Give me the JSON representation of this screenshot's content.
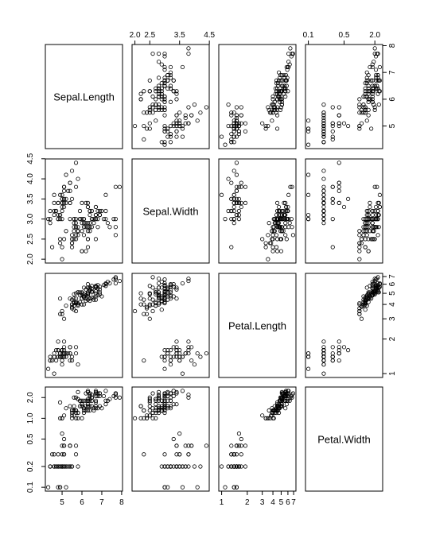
{
  "chart_data": {
    "type": "scatter",
    "kind": "pairs-matrix",
    "variables": [
      {
        "name": "Sepal.Length",
        "scale": "linear",
        "range": [
          4.3,
          7.9
        ],
        "ticks": [
          5,
          6,
          7,
          8
        ],
        "tick_labels": [
          "5",
          "6",
          "7",
          "8"
        ]
      },
      {
        "name": "Sepal.Width",
        "scale": "linear",
        "range": [
          2.0,
          4.4
        ],
        "ticks": [
          2.0,
          2.5,
          3.0,
          3.5,
          4.0,
          4.5
        ],
        "tick_labels": [
          "2.0",
          "2.5",
          "3.0",
          "3.5",
          "4.0",
          "4.5"
        ]
      },
      {
        "name": "Petal.Length",
        "scale": "log",
        "range": [
          1.0,
          6.9
        ],
        "ticks": [
          1,
          2,
          3,
          4,
          5,
          6,
          7
        ],
        "tick_labels": [
          "1",
          "2",
          "3",
          "4",
          "5",
          "6",
          "7"
        ]
      },
      {
        "name": "Petal.Width",
        "scale": "log",
        "range": [
          0.1,
          2.5
        ],
        "ticks": [
          0.1,
          0.2,
          0.5,
          1.0,
          2.0
        ],
        "tick_labels": [
          "0.1",
          "0.2",
          "0.5",
          "1.0",
          "2.0"
        ]
      }
    ],
    "top_axis_labels": [
      {
        "column": 1,
        "labels": [
          "2.0",
          "2.5",
          "3.5",
          "4.5"
        ],
        "ticks": [
          2.0,
          2.5,
          3.5,
          4.5
        ]
      },
      {
        "column": 3,
        "labels": [
          "0.1",
          "0.5",
          "2.0"
        ],
        "ticks": [
          0.1,
          0.5,
          2.0
        ]
      }
    ],
    "bottom_axis_labels": [
      {
        "column": 0,
        "labels": [
          "5",
          "6",
          "7",
          "8"
        ],
        "ticks": [
          5,
          6,
          7,
          8
        ]
      },
      {
        "column": 2,
        "labels": [
          "1",
          "2",
          "3",
          "4",
          "5",
          "6",
          "7"
        ],
        "ticks": [
          1,
          2,
          3,
          4,
          5,
          6,
          7
        ]
      }
    ],
    "left_axis_labels": [
      {
        "row": 1,
        "labels": [
          "2.0",
          "2.5",
          "3.0",
          "3.5",
          "4.0",
          "4.5"
        ],
        "ticks": [
          2.0,
          2.5,
          3.0,
          3.5,
          4.0,
          4.5
        ]
      },
      {
        "row": 3,
        "labels": [
          "0.1",
          "0.2",
          "0.5",
          "1.0",
          "2.0"
        ],
        "ticks": [
          0.1,
          0.2,
          0.5,
          1.0,
          2.0
        ]
      }
    ],
    "right_axis_labels": [
      {
        "row": 0,
        "labels": [
          "5",
          "6",
          "7",
          "8"
        ],
        "ticks": [
          5,
          6,
          7,
          8
        ]
      },
      {
        "row": 2,
        "labels": [
          "1",
          "2",
          "3",
          "4",
          "5",
          "6",
          "7"
        ],
        "ticks": [
          1,
          2,
          3,
          4,
          5,
          6,
          7
        ]
      }
    ],
    "points": [
      [
        5.1,
        3.5,
        1.4,
        0.2
      ],
      [
        4.9,
        3.0,
        1.4,
        0.2
      ],
      [
        4.7,
        3.2,
        1.3,
        0.2
      ],
      [
        4.6,
        3.1,
        1.5,
        0.2
      ],
      [
        5.0,
        3.6,
        1.4,
        0.2
      ],
      [
        5.4,
        3.9,
        1.7,
        0.4
      ],
      [
        4.6,
        3.4,
        1.4,
        0.3
      ],
      [
        5.0,
        3.4,
        1.5,
        0.2
      ],
      [
        4.4,
        2.9,
        1.4,
        0.2
      ],
      [
        4.9,
        3.1,
        1.5,
        0.1
      ],
      [
        5.4,
        3.7,
        1.5,
        0.2
      ],
      [
        4.8,
        3.4,
        1.6,
        0.2
      ],
      [
        4.8,
        3.0,
        1.4,
        0.1
      ],
      [
        4.3,
        3.0,
        1.1,
        0.1
      ],
      [
        5.8,
        4.0,
        1.2,
        0.2
      ],
      [
        5.7,
        4.4,
        1.5,
        0.4
      ],
      [
        5.4,
        3.9,
        1.3,
        0.4
      ],
      [
        5.1,
        3.5,
        1.4,
        0.3
      ],
      [
        5.7,
        3.8,
        1.7,
        0.3
      ],
      [
        5.1,
        3.8,
        1.5,
        0.3
      ],
      [
        5.4,
        3.4,
        1.7,
        0.2
      ],
      [
        5.1,
        3.7,
        1.5,
        0.4
      ],
      [
        4.6,
        3.6,
        1.0,
        0.2
      ],
      [
        5.1,
        3.3,
        1.7,
        0.5
      ],
      [
        4.8,
        3.4,
        1.9,
        0.2
      ],
      [
        5.0,
        3.0,
        1.6,
        0.2
      ],
      [
        5.0,
        3.4,
        1.6,
        0.4
      ],
      [
        5.2,
        3.5,
        1.5,
        0.2
      ],
      [
        5.2,
        3.4,
        1.4,
        0.2
      ],
      [
        4.7,
        3.2,
        1.6,
        0.2
      ],
      [
        4.8,
        3.1,
        1.6,
        0.2
      ],
      [
        5.4,
        3.4,
        1.5,
        0.4
      ],
      [
        5.2,
        4.1,
        1.5,
        0.1
      ],
      [
        5.5,
        4.2,
        1.4,
        0.2
      ],
      [
        4.9,
        3.1,
        1.5,
        0.2
      ],
      [
        5.0,
        3.2,
        1.2,
        0.2
      ],
      [
        5.5,
        3.5,
        1.3,
        0.2
      ],
      [
        4.9,
        3.6,
        1.4,
        0.1
      ],
      [
        4.4,
        3.0,
        1.3,
        0.2
      ],
      [
        5.1,
        3.4,
        1.5,
        0.2
      ],
      [
        5.0,
        3.5,
        1.3,
        0.3
      ],
      [
        4.5,
        2.3,
        1.3,
        0.3
      ],
      [
        4.4,
        3.2,
        1.3,
        0.2
      ],
      [
        5.0,
        3.5,
        1.6,
        0.6
      ],
      [
        5.1,
        3.8,
        1.9,
        0.4
      ],
      [
        4.8,
        3.0,
        1.4,
        0.3
      ],
      [
        5.1,
        3.8,
        1.6,
        0.2
      ],
      [
        4.6,
        3.2,
        1.4,
        0.2
      ],
      [
        5.3,
        3.7,
        1.5,
        0.2
      ],
      [
        5.0,
        3.3,
        1.4,
        0.2
      ],
      [
        7.0,
        3.2,
        4.7,
        1.4
      ],
      [
        6.4,
        3.2,
        4.5,
        1.5
      ],
      [
        6.9,
        3.1,
        4.9,
        1.5
      ],
      [
        5.5,
        2.3,
        4.0,
        1.3
      ],
      [
        6.5,
        2.8,
        4.6,
        1.5
      ],
      [
        5.7,
        2.8,
        4.5,
        1.3
      ],
      [
        6.3,
        3.3,
        4.7,
        1.6
      ],
      [
        4.9,
        2.4,
        3.3,
        1.0
      ],
      [
        6.6,
        2.9,
        4.6,
        1.3
      ],
      [
        5.2,
        2.7,
        3.9,
        1.4
      ],
      [
        5.0,
        2.0,
        3.5,
        1.0
      ],
      [
        5.9,
        3.0,
        4.2,
        1.5
      ],
      [
        6.0,
        2.2,
        4.0,
        1.0
      ],
      [
        6.1,
        2.9,
        4.7,
        1.4
      ],
      [
        5.6,
        2.9,
        3.6,
        1.3
      ],
      [
        6.7,
        3.1,
        4.4,
        1.4
      ],
      [
        5.6,
        3.0,
        4.5,
        1.5
      ],
      [
        5.8,
        2.7,
        4.1,
        1.0
      ],
      [
        6.2,
        2.2,
        4.5,
        1.5
      ],
      [
        5.6,
        2.5,
        3.9,
        1.1
      ],
      [
        5.9,
        3.2,
        4.8,
        1.8
      ],
      [
        6.1,
        2.8,
        4.0,
        1.3
      ],
      [
        6.3,
        2.5,
        4.9,
        1.5
      ],
      [
        6.1,
        2.8,
        4.7,
        1.2
      ],
      [
        6.4,
        2.9,
        4.3,
        1.3
      ],
      [
        6.6,
        3.0,
        4.4,
        1.4
      ],
      [
        6.8,
        2.8,
        4.8,
        1.4
      ],
      [
        6.7,
        3.0,
        5.0,
        1.7
      ],
      [
        6.0,
        2.9,
        4.5,
        1.5
      ],
      [
        5.7,
        2.6,
        3.5,
        1.0
      ],
      [
        5.5,
        2.4,
        3.8,
        1.1
      ],
      [
        5.5,
        2.4,
        3.7,
        1.0
      ],
      [
        5.8,
        2.7,
        3.9,
        1.2
      ],
      [
        6.0,
        2.7,
        5.1,
        1.6
      ],
      [
        5.4,
        3.0,
        4.5,
        1.5
      ],
      [
        6.0,
        3.4,
        4.5,
        1.6
      ],
      [
        6.7,
        3.1,
        4.7,
        1.5
      ],
      [
        6.3,
        2.3,
        4.4,
        1.3
      ],
      [
        5.6,
        3.0,
        4.1,
        1.3
      ],
      [
        5.5,
        2.5,
        4.0,
        1.3
      ],
      [
        5.5,
        2.6,
        4.4,
        1.2
      ],
      [
        6.1,
        3.0,
        4.6,
        1.4
      ],
      [
        5.8,
        2.6,
        4.0,
        1.2
      ],
      [
        5.0,
        2.3,
        3.3,
        1.0
      ],
      [
        5.6,
        2.7,
        4.2,
        1.3
      ],
      [
        5.7,
        3.0,
        4.2,
        1.2
      ],
      [
        5.7,
        2.9,
        4.2,
        1.3
      ],
      [
        6.2,
        2.9,
        4.3,
        1.3
      ],
      [
        5.1,
        2.5,
        3.0,
        1.1
      ],
      [
        5.7,
        2.8,
        4.1,
        1.3
      ],
      [
        6.3,
        3.3,
        6.0,
        2.5
      ],
      [
        5.8,
        2.7,
        5.1,
        1.9
      ],
      [
        7.1,
        3.0,
        5.9,
        2.1
      ],
      [
        6.3,
        2.9,
        5.6,
        1.8
      ],
      [
        6.5,
        3.0,
        5.8,
        2.2
      ],
      [
        7.6,
        3.0,
        6.6,
        2.1
      ],
      [
        4.9,
        2.5,
        4.5,
        1.7
      ],
      [
        7.3,
        2.9,
        6.3,
        1.8
      ],
      [
        6.7,
        2.5,
        5.8,
        1.8
      ],
      [
        7.2,
        3.6,
        6.1,
        2.5
      ],
      [
        6.5,
        3.2,
        5.1,
        2.0
      ],
      [
        6.4,
        2.7,
        5.3,
        1.9
      ],
      [
        6.8,
        3.0,
        5.5,
        2.1
      ],
      [
        5.7,
        2.5,
        5.0,
        2.0
      ],
      [
        5.8,
        2.8,
        5.1,
        2.4
      ],
      [
        6.4,
        3.2,
        5.3,
        2.3
      ],
      [
        6.5,
        3.0,
        5.5,
        1.8
      ],
      [
        7.7,
        3.8,
        6.7,
        2.2
      ],
      [
        7.7,
        2.6,
        6.9,
        2.3
      ],
      [
        6.0,
        2.2,
        5.0,
        1.5
      ],
      [
        6.9,
        3.2,
        5.7,
        2.3
      ],
      [
        5.6,
        2.8,
        4.9,
        2.0
      ],
      [
        7.7,
        2.8,
        6.7,
        2.0
      ],
      [
        6.3,
        2.7,
        4.9,
        1.8
      ],
      [
        6.7,
        3.3,
        5.7,
        2.1
      ],
      [
        7.2,
        3.2,
        6.0,
        1.8
      ],
      [
        6.2,
        2.8,
        4.8,
        1.8
      ],
      [
        6.1,
        3.0,
        4.9,
        1.8
      ],
      [
        6.4,
        2.8,
        5.6,
        2.1
      ],
      [
        7.2,
        3.0,
        5.8,
        1.6
      ],
      [
        7.4,
        2.8,
        6.1,
        1.9
      ],
      [
        7.9,
        3.8,
        6.4,
        2.0
      ],
      [
        6.4,
        2.8,
        5.6,
        2.2
      ],
      [
        6.3,
        2.8,
        5.1,
        1.5
      ],
      [
        6.1,
        2.6,
        5.6,
        1.4
      ],
      [
        7.7,
        3.0,
        6.1,
        2.3
      ],
      [
        6.3,
        3.4,
        5.6,
        2.4
      ],
      [
        6.4,
        3.1,
        5.5,
        1.8
      ],
      [
        6.0,
        3.0,
        4.8,
        1.8
      ],
      [
        6.9,
        3.1,
        5.4,
        2.1
      ],
      [
        6.7,
        3.1,
        5.6,
        2.4
      ],
      [
        6.9,
        3.1,
        5.1,
        2.3
      ],
      [
        5.8,
        2.7,
        5.1,
        1.9
      ],
      [
        6.8,
        3.2,
        5.9,
        2.3
      ],
      [
        6.7,
        3.3,
        5.7,
        2.5
      ],
      [
        6.7,
        3.0,
        5.2,
        2.3
      ],
      [
        6.3,
        2.5,
        5.0,
        1.9
      ],
      [
        6.5,
        3.0,
        5.2,
        2.0
      ],
      [
        6.2,
        3.4,
        5.4,
        2.3
      ],
      [
        5.9,
        3.0,
        5.1,
        1.8
      ]
    ],
    "marker": "open-circle",
    "grid": false,
    "legend": "none"
  }
}
